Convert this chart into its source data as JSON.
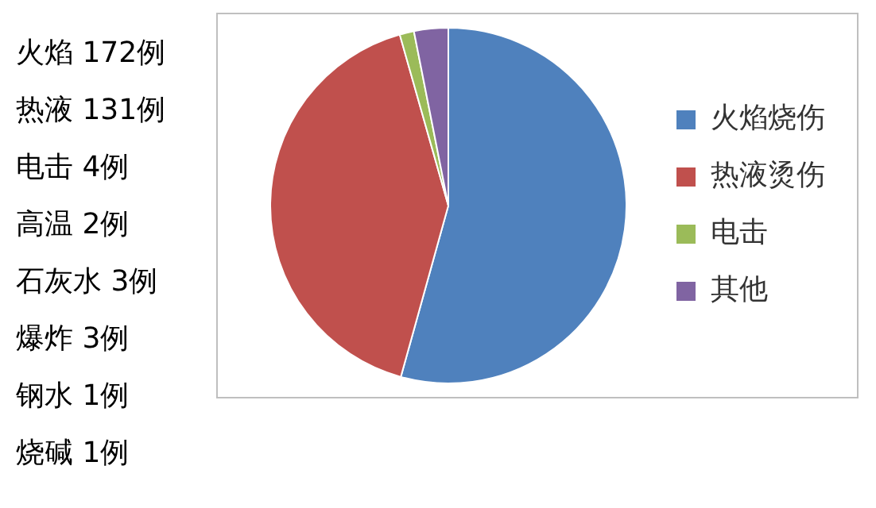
{
  "chart_data": {
    "type": "pie",
    "categories": [
      "火焰烧伤",
      "热液烫伤",
      "电击",
      "其他"
    ],
    "values": [
      54.3,
      41.3,
      1.3,
      3.1
    ],
    "colors": [
      "#4f81bd",
      "#c0504d",
      "#9bbb59",
      "#8064a2"
    ],
    "legend": "right",
    "annotations": [
      "火焰 172例",
      "热液 131例",
      "电击 4例",
      "高温 2例",
      "石灰水 3例",
      "爆炸 3例",
      "钢水 1例",
      "烧碱 1例"
    ]
  }
}
